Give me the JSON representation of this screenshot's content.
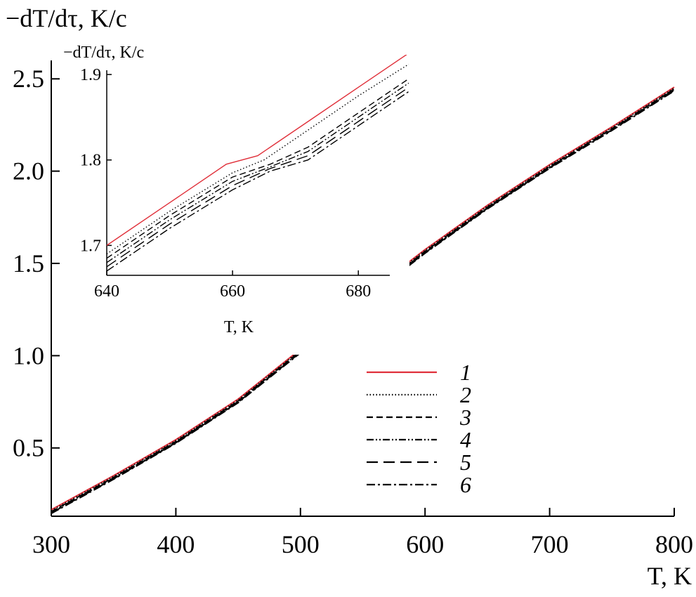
{
  "chart_data": [
    {
      "type": "line",
      "ylabel": "−dT/dτ, K/c",
      "xlabel": "T, K",
      "xlim": [
        300,
        800
      ],
      "ylim": [
        0.13,
        2.6
      ],
      "xticks": [
        "300",
        "400",
        "500",
        "600",
        "700",
        "800"
      ],
      "yticks": [
        "0.5",
        "1.0",
        "1.5",
        "2.0",
        "2.5"
      ],
      "grid": false,
      "legend_position": "center-right",
      "series": [
        {
          "name": "1",
          "color": "#e0303a",
          "style": "solid",
          "x": [
            300,
            350,
            400,
            450,
            500,
            550,
            600,
            650,
            700,
            750,
            800
          ],
          "y": [
            0.165,
            0.35,
            0.545,
            0.765,
            1.035,
            1.315,
            1.575,
            1.815,
            2.035,
            2.24,
            2.455
          ]
        },
        {
          "name": "2",
          "color": "#000000",
          "style": "dotted",
          "x": [
            300,
            350,
            400,
            450,
            500,
            550,
            600,
            650,
            700,
            750,
            800
          ],
          "y": [
            0.16,
            0.345,
            0.54,
            0.76,
            1.03,
            1.31,
            1.57,
            1.81,
            2.03,
            2.235,
            2.45
          ]
        },
        {
          "name": "3",
          "color": "#000000",
          "style": "dashed",
          "x": [
            300,
            350,
            400,
            450,
            500,
            550,
            600,
            650,
            700,
            750,
            800
          ],
          "y": [
            0.155,
            0.34,
            0.535,
            0.755,
            1.025,
            1.305,
            1.565,
            1.805,
            2.025,
            2.23,
            2.445
          ]
        },
        {
          "name": "4",
          "color": "#000000",
          "style": "dash-dot-dot",
          "x": [
            300,
            350,
            400,
            450,
            500,
            550,
            600,
            650,
            700,
            750,
            800
          ],
          "y": [
            0.152,
            0.337,
            0.532,
            0.752,
            1.022,
            1.302,
            1.562,
            1.802,
            2.022,
            2.227,
            2.442
          ]
        },
        {
          "name": "5",
          "color": "#000000",
          "style": "long-dash",
          "x": [
            300,
            350,
            400,
            450,
            500,
            550,
            600,
            650,
            700,
            750,
            800
          ],
          "y": [
            0.148,
            0.333,
            0.528,
            0.748,
            1.018,
            1.298,
            1.558,
            1.798,
            2.018,
            2.223,
            2.438
          ]
        },
        {
          "name": "6",
          "color": "#000000",
          "style": "dash-dot",
          "x": [
            300,
            350,
            400,
            450,
            500,
            550,
            600,
            650,
            700,
            750,
            800
          ],
          "y": [
            0.145,
            0.33,
            0.525,
            0.745,
            1.015,
            1.295,
            1.555,
            1.795,
            2.015,
            2.22,
            2.435
          ]
        }
      ]
    },
    {
      "type": "line",
      "ylabel": "−dT/dτ, K/c",
      "xlabel": "T, K",
      "xlim": [
        640,
        685
      ],
      "ylim": [
        1.665,
        1.905
      ],
      "xticks": [
        "640",
        "660",
        "680"
      ],
      "yticks": [
        "1.7",
        "1.8",
        "1.9"
      ],
      "grid": false,
      "series": [
        {
          "name": "1",
          "color": "#e0303a",
          "style": "solid",
          "x": [
            640,
            650,
            659,
            664,
            672,
            680,
            688
          ],
          "y": [
            1.7,
            1.75,
            1.795,
            1.805,
            1.845,
            1.885,
            1.925
          ]
        },
        {
          "name": "2",
          "color": "#000000",
          "style": "dotted",
          "x": [
            640,
            650,
            660,
            665,
            672,
            680,
            688
          ],
          "y": [
            1.69,
            1.74,
            1.785,
            1.8,
            1.835,
            1.875,
            1.912
          ]
        },
        {
          "name": "3",
          "color": "#000000",
          "style": "dashed",
          "x": [
            640,
            650,
            660,
            666,
            672,
            680,
            688
          ],
          "y": [
            1.685,
            1.735,
            1.78,
            1.795,
            1.815,
            1.855,
            1.895
          ]
        },
        {
          "name": "4",
          "color": "#000000",
          "style": "dash-dot-dot",
          "x": [
            640,
            650,
            660,
            666,
            672,
            680,
            688
          ],
          "y": [
            1.68,
            1.73,
            1.775,
            1.792,
            1.81,
            1.85,
            1.89
          ]
        },
        {
          "name": "5",
          "color": "#000000",
          "style": "long-dash",
          "x": [
            640,
            650,
            660,
            666,
            672,
            680,
            688
          ],
          "y": [
            1.675,
            1.725,
            1.77,
            1.79,
            1.805,
            1.845,
            1.885
          ]
        },
        {
          "name": "6",
          "color": "#000000",
          "style": "dash-dot",
          "x": [
            640,
            650,
            660,
            666,
            672,
            680,
            688
          ],
          "y": [
            1.67,
            1.72,
            1.765,
            1.787,
            1.8,
            1.84,
            1.88
          ]
        }
      ]
    }
  ]
}
